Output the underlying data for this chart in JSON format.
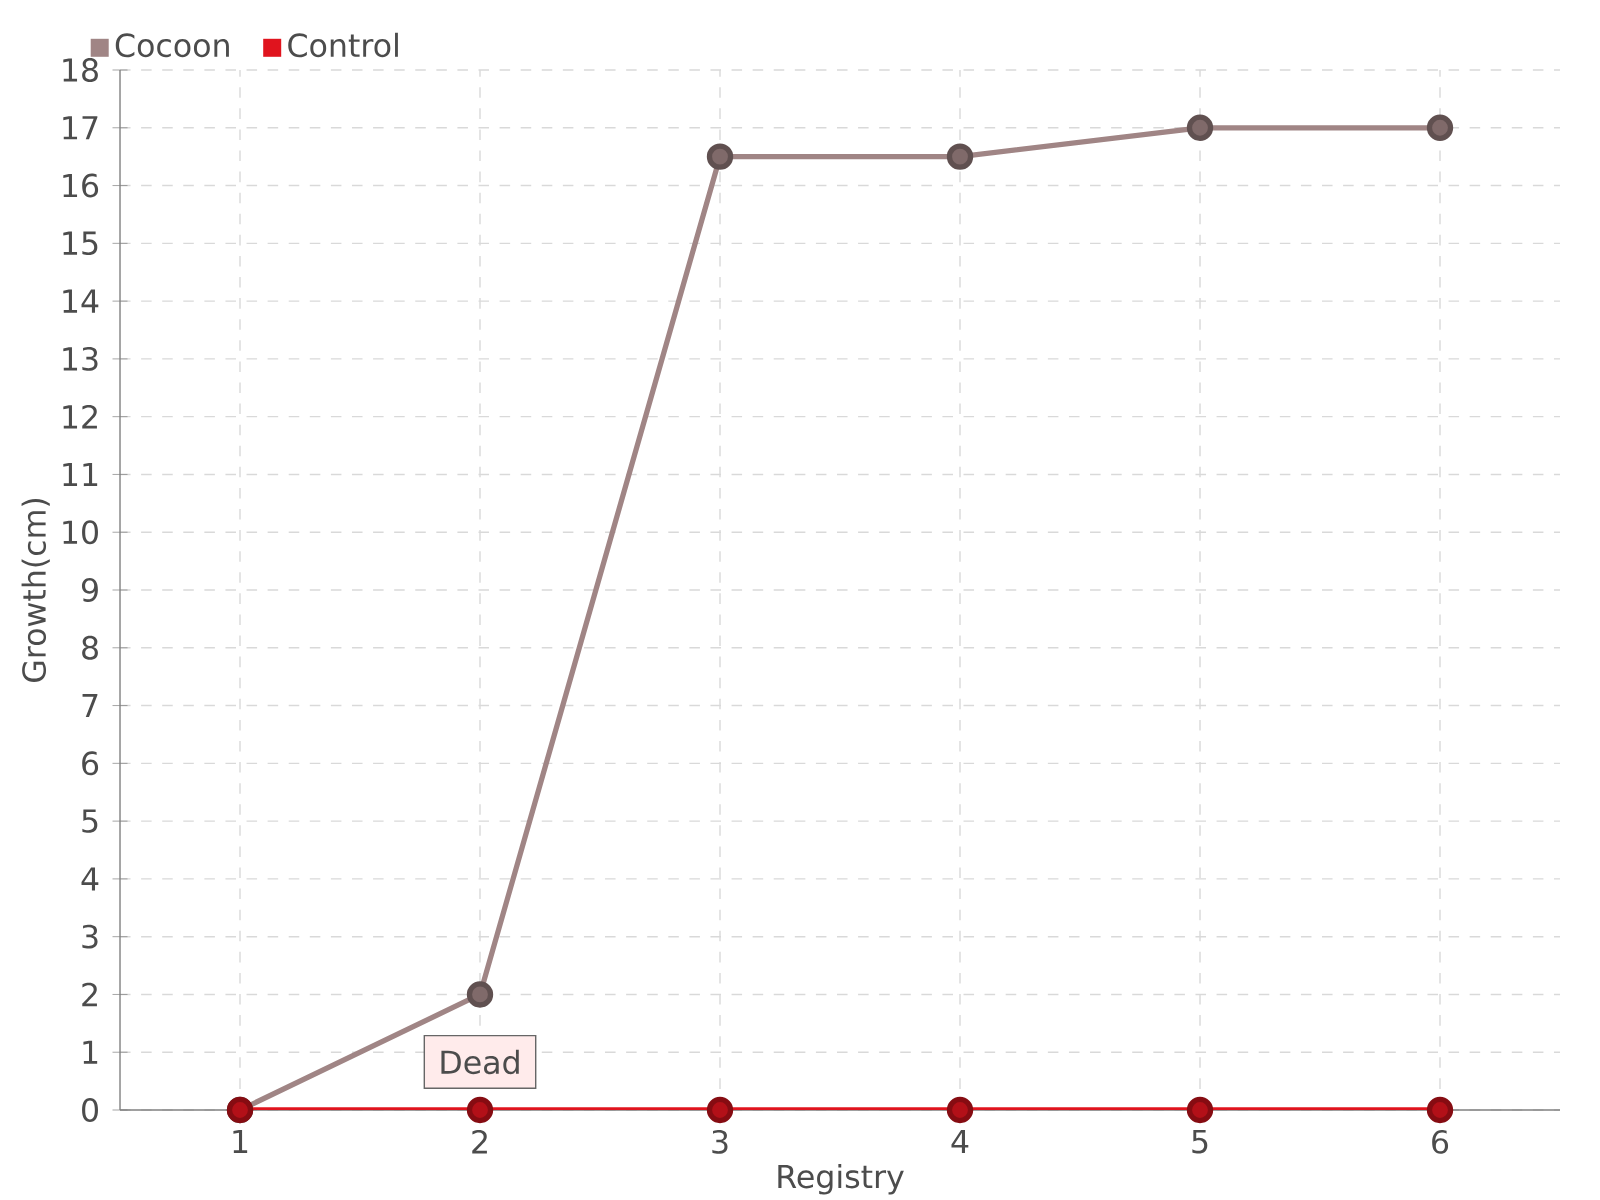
{
  "chart_data": {
    "type": "line",
    "xlabel": "Registry",
    "ylabel": "Growth(cm)",
    "categories": [
      "1",
      "2",
      "3",
      "4",
      "5",
      "6"
    ],
    "series": [
      {
        "name": "Cocoon",
        "color": "#a08585",
        "values": [
          0,
          2,
          16.5,
          16.5,
          17,
          17
        ]
      },
      {
        "name": "Control",
        "color": "#e0141e",
        "values": [
          0,
          0,
          0,
          0,
          0,
          0
        ]
      }
    ],
    "ylim": [
      0,
      18
    ],
    "yticks": [
      0,
      1,
      2,
      3,
      4,
      5,
      6,
      7,
      8,
      9,
      10,
      11,
      12,
      13,
      14,
      15,
      16,
      17,
      18
    ],
    "grid": true,
    "legend": "top left",
    "marker": "circle",
    "annotations": [
      {
        "text": "Dead",
        "x": "2",
        "y": 0
      }
    ]
  }
}
